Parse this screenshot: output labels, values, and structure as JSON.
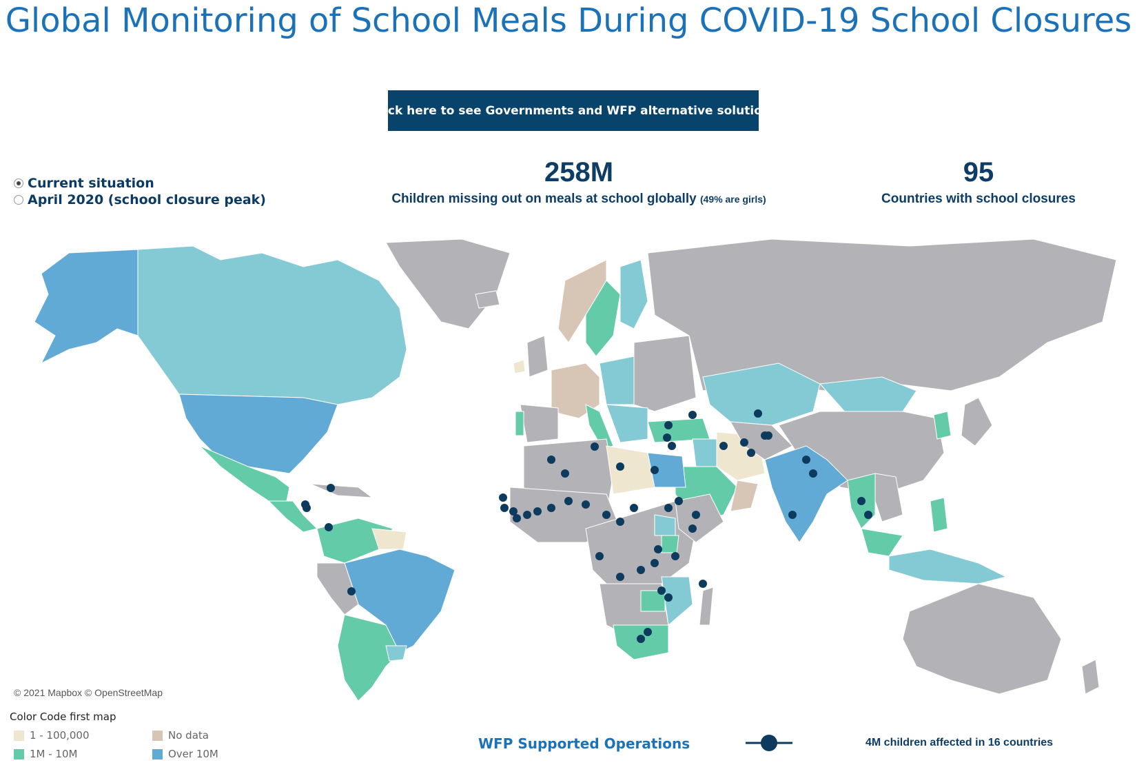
{
  "title": "Global Monitoring of School Meals During COVID-19 School Closures",
  "cta_button": "Click here to see Governments and WFP alternative solutio...",
  "view_options": [
    {
      "label": "Current situation",
      "selected": true
    },
    {
      "label": "April 2020 (school closure peak)",
      "selected": false
    }
  ],
  "kpis": {
    "children": {
      "value": "258M",
      "label": "Children missing out on meals at school globally",
      "note": "(49% are girls)"
    },
    "countries": {
      "value": "95",
      "label": "Countries with school closures"
    }
  },
  "map_attribution": "© 2021 Mapbox  © OpenStreetMap",
  "legend": {
    "title": "Color Code first map",
    "items": [
      {
        "label": "1 - 100,000",
        "color": "#efe6d0"
      },
      {
        "label": "No data",
        "color": "#d7c6b6"
      },
      {
        "label": "1M - 10M",
        "color": "#64cba8"
      },
      {
        "label": "Over 10M",
        "color": "#62aad6"
      }
    ]
  },
  "wfp": {
    "label": "WFP Supported Operations",
    "stat": "4M children affected in 16 countries",
    "marker_color": "#0d3b5e"
  },
  "colors": {
    "title": "#1b72b9",
    "button": "#07436b",
    "gray_country": "#b3b3b7",
    "light_blue": "#84cad4"
  }
}
